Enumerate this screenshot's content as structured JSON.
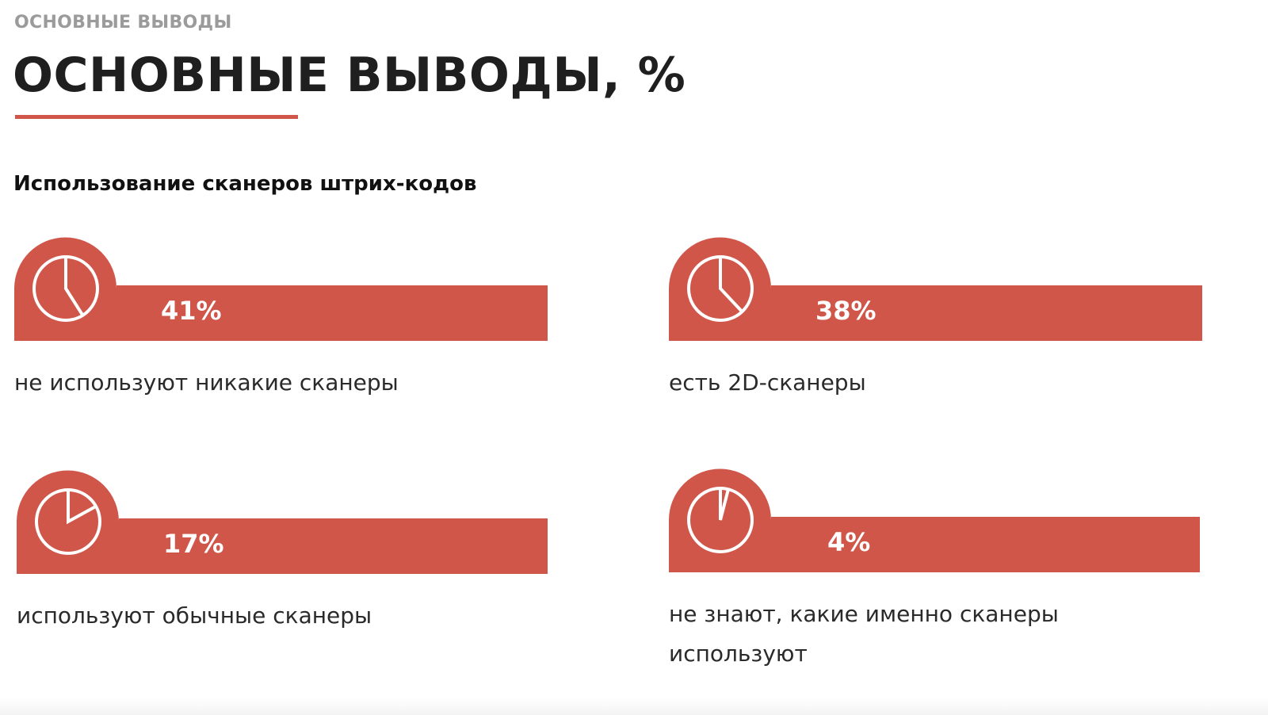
{
  "header": {
    "kicker": "ОСНОВНЫЕ ВЫВОДЫ",
    "title": "ОСНОВНЫЕ ВЫВОДЫ, %",
    "subtitle": "Использование сканеров штрих-кодов"
  },
  "colors": {
    "accent": "#d0564a",
    "text": "#1f1f1f",
    "muted": "#9b9b9b"
  },
  "chart_data": {
    "type": "bar",
    "title": "Использование сканеров штрих-кодов",
    "unit": "%",
    "items": [
      {
        "value": 41,
        "label": "41%",
        "caption": "не используют никакие сканеры"
      },
      {
        "value": 38,
        "label": "38%",
        "caption": "есть 2D-сканеры"
      },
      {
        "value": 17,
        "label": "17%",
        "caption": "используют обычные сканеры"
      },
      {
        "value": 4,
        "label": "4%",
        "caption": "не знают, какие именно сканеры используют"
      }
    ]
  }
}
